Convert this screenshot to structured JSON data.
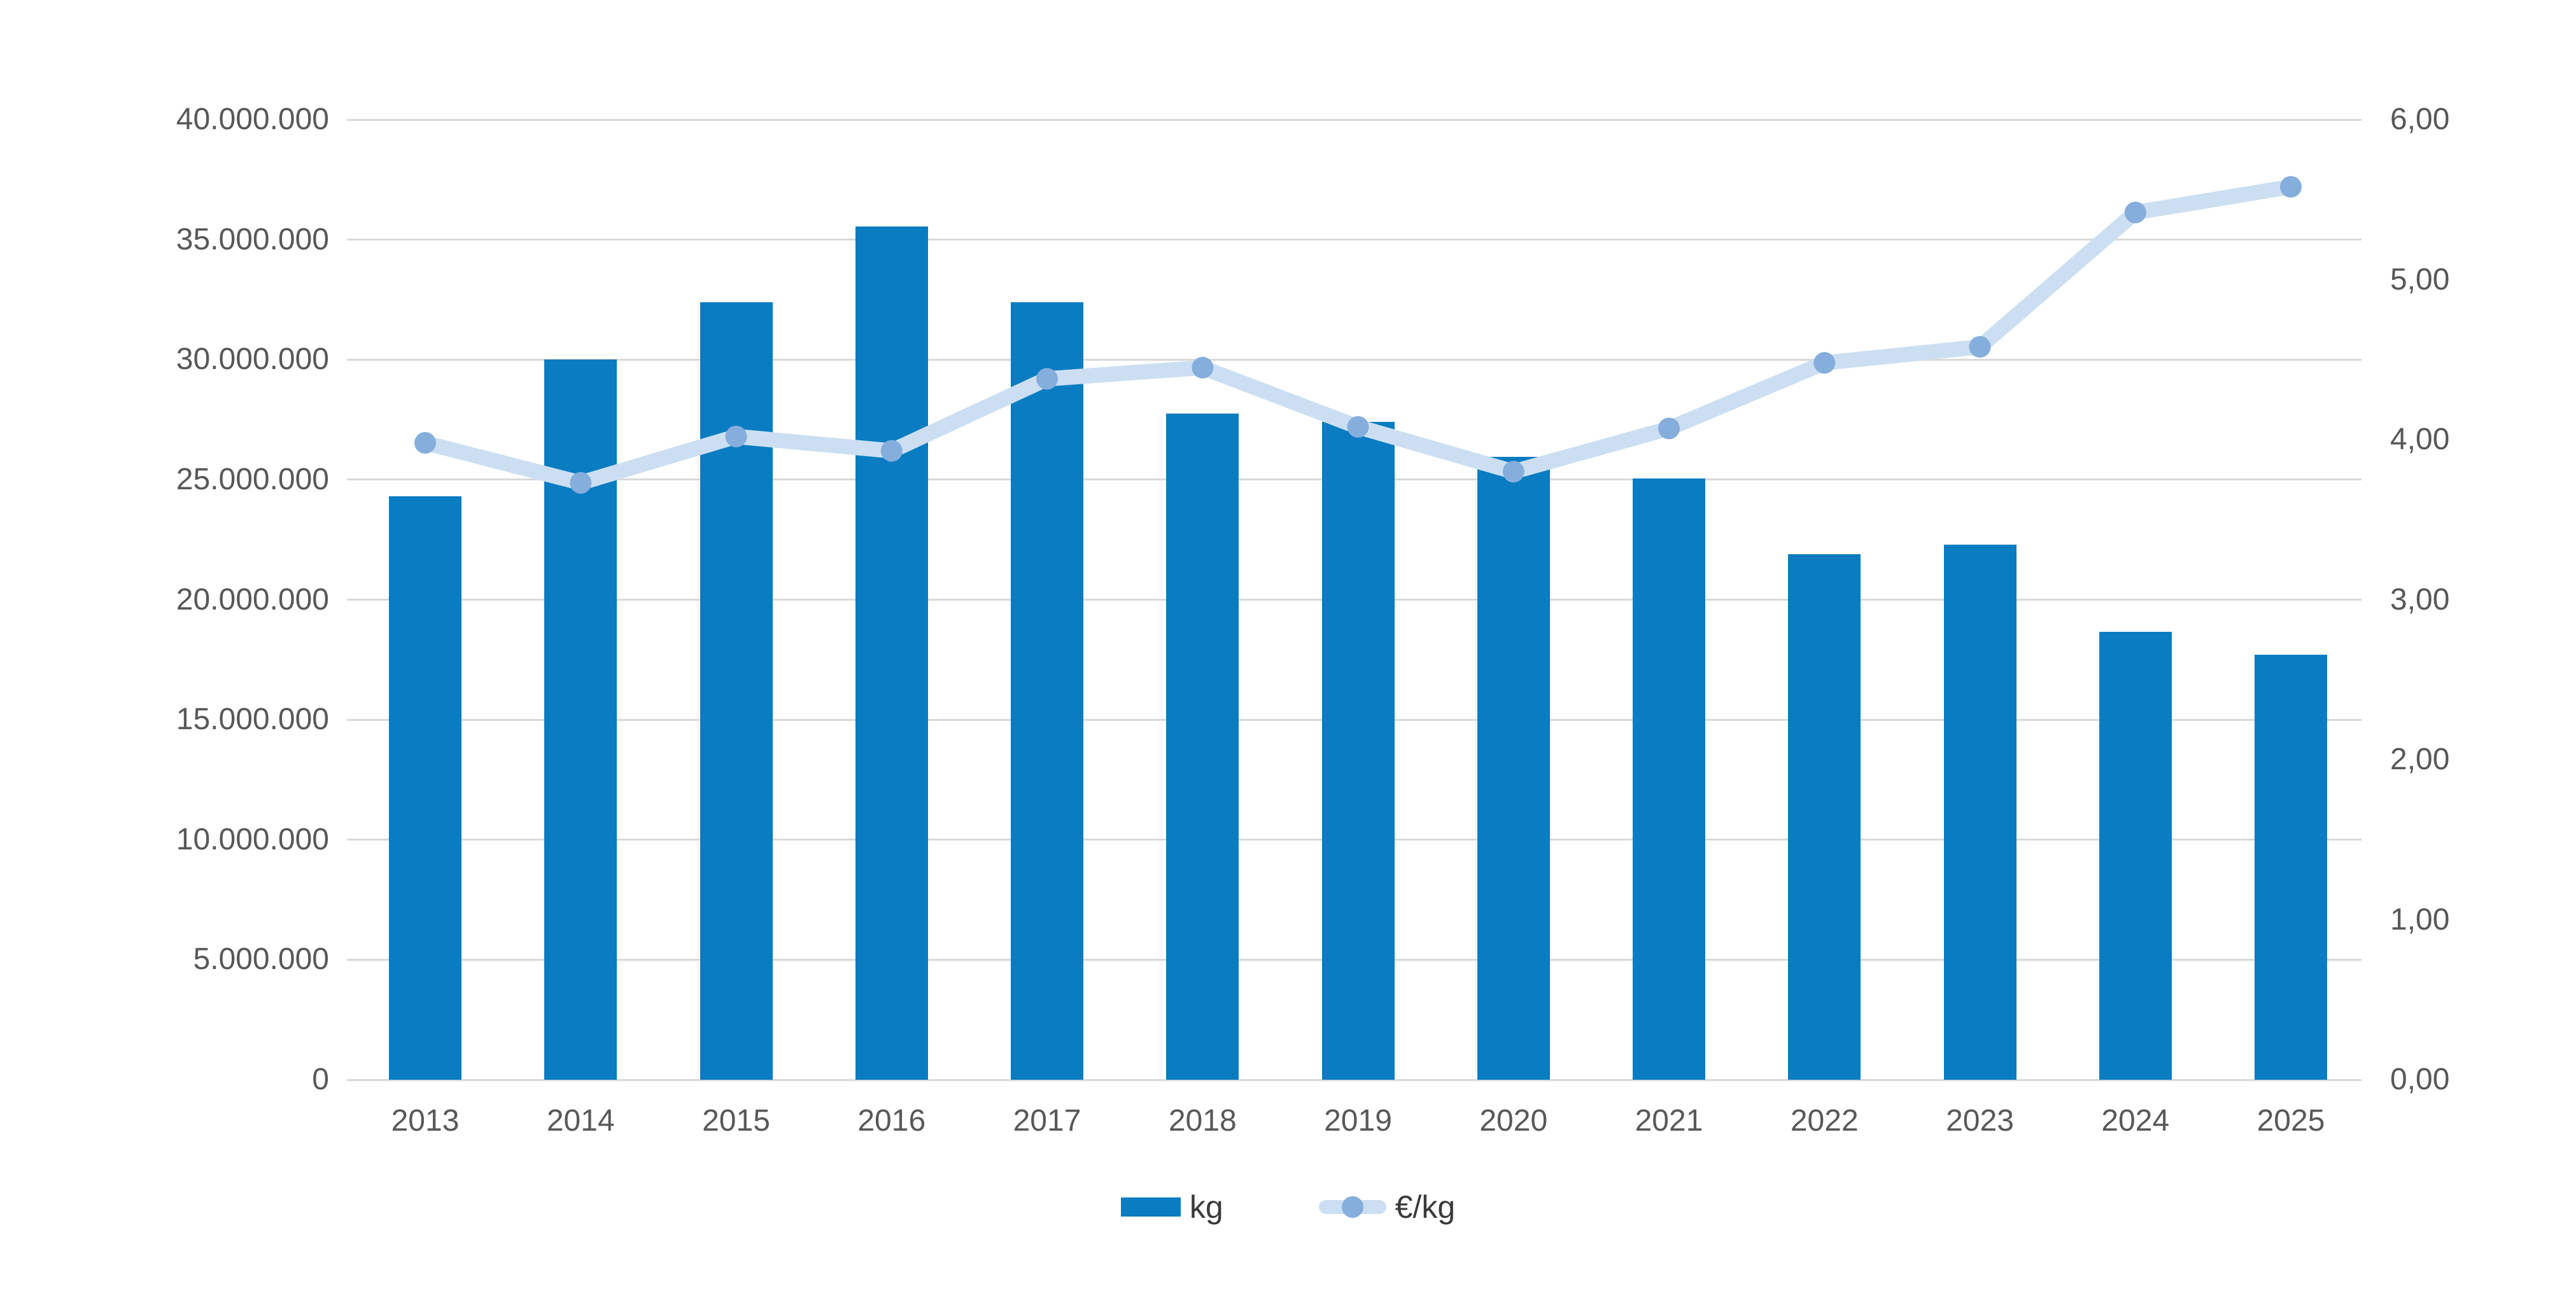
{
  "chart_data": {
    "type": "bar",
    "categories": [
      "2013",
      "2014",
      "2015",
      "2016",
      "2017",
      "2018",
      "2019",
      "2020",
      "2021",
      "2022",
      "2023",
      "2024",
      "2025"
    ],
    "series": [
      {
        "name": "kg",
        "type": "bar",
        "axis": "left",
        "color": "#0a7cc2",
        "values": [
          24300000,
          30000000,
          32400000,
          35550000,
          32400000,
          27750000,
          27400000,
          25950000,
          25050000,
          21900000,
          22300000,
          18650000,
          17700000
        ]
      },
      {
        "name": "€/kg",
        "type": "line",
        "axis": "right",
        "color": "#ccdff2",
        "marker_color": "#85aedd",
        "values": [
          3.98,
          3.73,
          4.02,
          3.93,
          4.38,
          4.45,
          4.08,
          3.8,
          4.07,
          4.48,
          4.58,
          5.42,
          5.58
        ]
      }
    ],
    "title": "",
    "xlabel": "",
    "ylabel_left": "",
    "ylabel_right": "",
    "left_axis": {
      "min": 0,
      "max": 40000000,
      "step": 5000000,
      "tick_labels": [
        "0",
        "5.000.000",
        "10.000.000",
        "15.000.000",
        "20.000.000",
        "25.000.000",
        "30.000.000",
        "35.000.000",
        "40.000.000"
      ]
    },
    "right_axis": {
      "min": 0,
      "max": 6,
      "step": 1,
      "tick_labels": [
        "0,00",
        "1,00",
        "2,00",
        "3,00",
        "4,00",
        "5,00",
        "6,00"
      ]
    },
    "grid": true,
    "legend_position": "bottom-center",
    "legend": [
      {
        "label": "kg"
      },
      {
        "label": "€/kg"
      }
    ]
  },
  "colors": {
    "bar": "#0a7cc2",
    "line": "#ccdff2",
    "marker": "#85aedd",
    "gridline": "#d9d9d9",
    "tick_text": "#58585a",
    "legend_text": "#3a3a3c",
    "background": "#ffffff"
  }
}
